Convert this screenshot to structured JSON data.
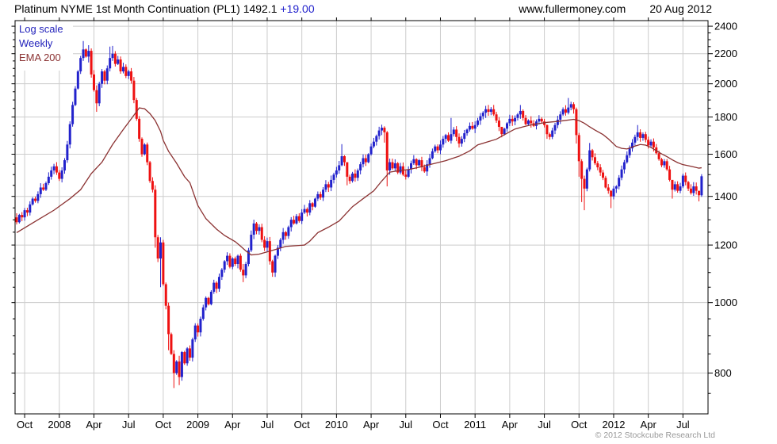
{
  "header": {
    "title": "Platinum NYME 1st Month Continuation (PL1)",
    "last_price": "1492.1",
    "change": "+19.00",
    "website": "www.fullermoney.com",
    "date": "20 Aug 2012"
  },
  "legend": {
    "scale": "Log scale",
    "interval": "Weekly",
    "overlay": "EMA 200"
  },
  "footer": {
    "copyright": "© 2012 Stockcube Research Ltd"
  },
  "colors": {
    "up": "#2222cc",
    "down": "#ee1111",
    "ema": "#8b3232",
    "grid": "#cccccc",
    "axis": "#000000",
    "legend_blue": "#2222bb",
    "change_blue": "#2222cc",
    "copyright": "#999999"
  },
  "chart_data": {
    "type": "candlestick",
    "title": "Platinum NYME 1st Month Continuation (PL1)",
    "instrument": "PL1",
    "interval": "weekly",
    "scale": "log",
    "last_price": 1492.1,
    "change": 19.0,
    "overlay": "EMA 200",
    "y_axis": {
      "ticks": [
        2400,
        2200,
        2000,
        1800,
        1600,
        1400,
        1200,
        1000,
        800
      ],
      "minor_step": 50,
      "range": [
        703,
        2443
      ]
    },
    "x_axis": {
      "labels": [
        "Oct",
        "2008",
        "Apr",
        "Jul",
        "Oct",
        "2009",
        "Apr",
        "Jul",
        "Oct",
        "2010",
        "Apr",
        "Jul",
        "Oct",
        "2011",
        "Apr",
        "Jul",
        "Oct",
        "2012",
        "Apr",
        "Jul"
      ],
      "weeks_per_label": 13,
      "first_label_week_index": 3,
      "start": "Sep 2007",
      "end": "Aug 2012"
    },
    "first_open": 1310,
    "closes": [
      1290,
      1320,
      1310,
      1340,
      1330,
      1365,
      1390,
      1380,
      1410,
      1440,
      1430,
      1460,
      1490,
      1520,
      1540,
      1510,
      1480,
      1520,
      1570,
      1650,
      1760,
      1870,
      1970,
      2080,
      2170,
      2230,
      2180,
      2220,
      2060,
      1960,
      1880,
      2000,
      2080,
      2020,
      2100,
      2170,
      2200,
      2130,
      2160,
      2080,
      2110,
      2050,
      2080,
      2020,
      1900,
      1790,
      1680,
      1600,
      1650,
      1560,
      1470,
      1430,
      1230,
      1150,
      1210,
      1060,
      990,
      905,
      850,
      800,
      830,
      790,
      855,
      825,
      865,
      840,
      890,
      930,
      910,
      950,
      985,
      1015,
      995,
      1035,
      1065,
      1045,
      1085,
      1110,
      1140,
      1160,
      1120,
      1150,
      1130,
      1160,
      1110,
      1090,
      1130,
      1180,
      1240,
      1285,
      1255,
      1270,
      1220,
      1190,
      1215,
      1140,
      1100,
      1160,
      1190,
      1220,
      1250,
      1235,
      1270,
      1300,
      1285,
      1315,
      1295,
      1330,
      1345,
      1330,
      1370,
      1355,
      1390,
      1410,
      1395,
      1430,
      1455,
      1440,
      1475,
      1500,
      1520,
      1545,
      1590,
      1560,
      1490,
      1470,
      1505,
      1485,
      1520,
      1550,
      1580,
      1560,
      1600,
      1640,
      1665,
      1695,
      1725,
      1740,
      1715,
      1520,
      1560,
      1530,
      1555,
      1510,
      1540,
      1500,
      1490,
      1525,
      1555,
      1575,
      1545,
      1570,
      1535,
      1515,
      1550,
      1580,
      1615,
      1640,
      1620,
      1650,
      1680,
      1700,
      1670,
      1705,
      1730,
      1690,
      1655,
      1680,
      1710,
      1730,
      1750,
      1735,
      1755,
      1780,
      1805,
      1825,
      1845,
      1830,
      1845,
      1815,
      1780,
      1745,
      1705,
      1735,
      1765,
      1790,
      1775,
      1795,
      1815,
      1835,
      1795,
      1760,
      1780,
      1765,
      1750,
      1775,
      1790,
      1775,
      1755,
      1705,
      1690,
      1725,
      1755,
      1785,
      1815,
      1845,
      1825,
      1855,
      1875,
      1845,
      1700,
      1565,
      1480,
      1435,
      1525,
      1620,
      1585,
      1555,
      1535,
      1510,
      1485,
      1440,
      1425,
      1400,
      1435,
      1445,
      1485,
      1525,
      1560,
      1595,
      1630,
      1660,
      1690,
      1715,
      1685,
      1705,
      1675,
      1645,
      1665,
      1635,
      1605,
      1575,
      1545,
      1565,
      1525,
      1475,
      1430,
      1455,
      1425,
      1445,
      1495,
      1465,
      1435,
      1415,
      1445,
      1425,
      1405,
      1492.1
    ],
    "spikes": {
      "25": [
        2290,
        2150
      ],
      "27": [
        2260,
        2140
      ],
      "30": [
        1990,
        1830
      ],
      "35": [
        2250,
        2080
      ],
      "36": [
        2255,
        2150
      ],
      "52": [
        1450,
        1190
      ],
      "54": [
        1230,
        1050
      ],
      "57": [
        1000,
        860
      ],
      "59": [
        860,
        763
      ],
      "61": [
        845,
        770
      ],
      "85": [
        1130,
        1067
      ],
      "122": [
        1652,
        1540
      ],
      "124": [
        1560,
        1450
      ],
      "137": [
        1757,
        1700
      ],
      "138": [
        1748,
        1660
      ],
      "139": [
        1722,
        1445
      ],
      "163": [
        1795,
        1655
      ],
      "176": [
        1865,
        1795
      ],
      "182": [
        1730,
        1688
      ],
      "189": [
        1870,
        1790
      ],
      "199": [
        1758,
        1680
      ],
      "207": [
        1912,
        1815
      ],
      "210": [
        1855,
        1655
      ],
      "211": [
        1712,
        1490
      ],
      "212": [
        1575,
        1375
      ],
      "213": [
        1495,
        1340
      ],
      "215": [
        1658,
        1515
      ],
      "223": [
        1428,
        1349
      ],
      "233": [
        1755,
        1670
      ],
      "246": [
        1462,
        1390
      ],
      "256": [
        1420,
        1378
      ],
      "257": [
        1502,
        1398
      ]
    },
    "ema_points": [
      [
        0,
        1248
      ],
      [
        8,
        1300
      ],
      [
        14,
        1340
      ],
      [
        20,
        1390
      ],
      [
        24,
        1430
      ],
      [
        28,
        1505
      ],
      [
        32,
        1560
      ],
      [
        36,
        1650
      ],
      [
        40,
        1730
      ],
      [
        43,
        1790
      ],
      [
        46,
        1853
      ],
      [
        48,
        1848
      ],
      [
        50,
        1820
      ],
      [
        52,
        1780
      ],
      [
        54,
        1720
      ],
      [
        55,
        1672
      ],
      [
        57,
        1615
      ],
      [
        60,
        1555
      ],
      [
        63,
        1490
      ],
      [
        65,
        1462
      ],
      [
        68,
        1360
      ],
      [
        71,
        1305
      ],
      [
        75,
        1262
      ],
      [
        78,
        1237
      ],
      [
        82,
        1213
      ],
      [
        84,
        1196
      ],
      [
        86,
        1178
      ],
      [
        88,
        1163
      ],
      [
        91,
        1166
      ],
      [
        95,
        1177
      ],
      [
        101,
        1195
      ],
      [
        108,
        1200
      ],
      [
        110,
        1215
      ],
      [
        113,
        1248
      ],
      [
        117,
        1270
      ],
      [
        121,
        1295
      ],
      [
        126,
        1355
      ],
      [
        130,
        1390
      ],
      [
        134,
        1425
      ],
      [
        137,
        1470
      ],
      [
        140,
        1512
      ],
      [
        144,
        1520
      ],
      [
        147,
        1524
      ],
      [
        151,
        1535
      ],
      [
        155,
        1548
      ],
      [
        161,
        1568
      ],
      [
        166,
        1590
      ],
      [
        170,
        1617
      ],
      [
        173,
        1648
      ],
      [
        177,
        1665
      ],
      [
        180,
        1678
      ],
      [
        184,
        1710
      ],
      [
        187,
        1733
      ],
      [
        190,
        1745
      ],
      [
        193,
        1756
      ],
      [
        196,
        1763
      ],
      [
        199,
        1770
      ],
      [
        202,
        1774
      ],
      [
        205,
        1779
      ],
      [
        209,
        1787
      ],
      [
        211,
        1780
      ],
      [
        213,
        1765
      ],
      [
        215,
        1745
      ],
      [
        217,
        1727
      ],
      [
        220,
        1703
      ],
      [
        222,
        1680
      ],
      [
        225,
        1640
      ],
      [
        227,
        1630
      ],
      [
        229,
        1627
      ],
      [
        232,
        1642
      ],
      [
        234,
        1650
      ],
      [
        236,
        1647
      ],
      [
        238,
        1635
      ],
      [
        240,
        1618
      ],
      [
        242,
        1602
      ],
      [
        244,
        1588
      ],
      [
        246,
        1572
      ],
      [
        248,
        1558
      ],
      [
        250,
        1548
      ],
      [
        252,
        1543
      ],
      [
        254,
        1537
      ],
      [
        256,
        1531
      ],
      [
        257,
        1533
      ]
    ]
  }
}
